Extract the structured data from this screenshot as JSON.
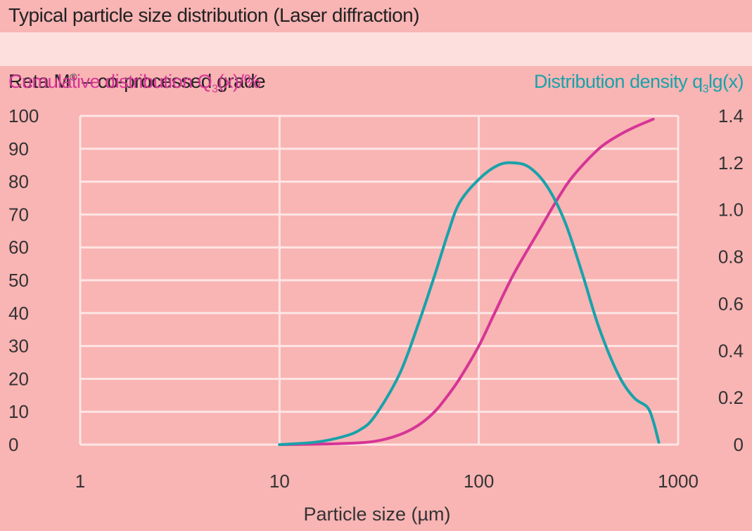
{
  "header": {
    "title": "Typical particle size distribution (Laser diffraction)",
    "subtitle": "Reta M® – co-processed grade"
  },
  "chart_data": {
    "type": "line",
    "x_scale": "log",
    "xlim": [
      1,
      1000
    ],
    "xlabel": "Particle size (µm)",
    "x_ticks": [
      "1",
      "10",
      "100",
      "1000"
    ],
    "y_left": {
      "label": "Cumulative distribution Q3(x)/%",
      "ylim": [
        0,
        100
      ],
      "ticks": [
        "0",
        "10",
        "20",
        "30",
        "40",
        "50",
        "60",
        "70",
        "80",
        "90",
        "100"
      ]
    },
    "y_right": {
      "label": "Distribution density q3lg(x)",
      "ylim": [
        0,
        1.4
      ],
      "ticks": [
        "0",
        "0.2",
        "0.4",
        "0.6",
        "0.8",
        "1.0",
        "1.2",
        "1.4"
      ]
    },
    "grid": true,
    "series": [
      {
        "axis": "left",
        "color": "#d63596",
        "points": [
          [
            10,
            0
          ],
          [
            20,
            0.3
          ],
          [
            30,
            1
          ],
          [
            40,
            3
          ],
          [
            50,
            6
          ],
          [
            60,
            10
          ],
          [
            70,
            15
          ],
          [
            80,
            20
          ],
          [
            100,
            30
          ],
          [
            120,
            40
          ],
          [
            150,
            52
          ],
          [
            200,
            65
          ],
          [
            250,
            75
          ],
          [
            300,
            82
          ],
          [
            400,
            90
          ],
          [
            500,
            94
          ],
          [
            600,
            96.5
          ],
          [
            750,
            99
          ]
        ]
      },
      {
        "axis": "right",
        "color": "#18a2aa",
        "points": [
          [
            10,
            0
          ],
          [
            15,
            0.01
          ],
          [
            20,
            0.03
          ],
          [
            25,
            0.06
          ],
          [
            30,
            0.12
          ],
          [
            40,
            0.3
          ],
          [
            50,
            0.52
          ],
          [
            60,
            0.72
          ],
          [
            70,
            0.9
          ],
          [
            80,
            1.03
          ],
          [
            100,
            1.13
          ],
          [
            125,
            1.19
          ],
          [
            150,
            1.2
          ],
          [
            180,
            1.18
          ],
          [
            220,
            1.1
          ],
          [
            270,
            0.95
          ],
          [
            330,
            0.73
          ],
          [
            400,
            0.5
          ],
          [
            500,
            0.3
          ],
          [
            600,
            0.2
          ],
          [
            700,
            0.16
          ],
          [
            750,
            0.1
          ],
          [
            800,
            0.01
          ]
        ]
      }
    ]
  }
}
